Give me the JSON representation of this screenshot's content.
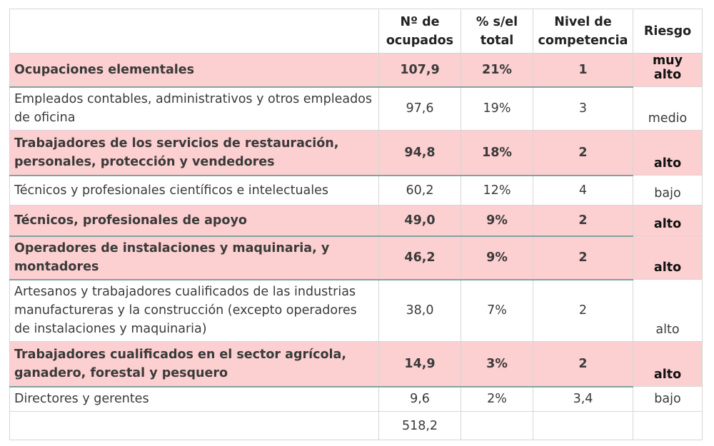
{
  "headers": {
    "occupation": "",
    "employed_l1": "Nº de",
    "employed_l2": "ocupados",
    "percent_l1": "% s/el",
    "percent_l2": "total",
    "level_l1": "Nivel de",
    "level_l2": "competencia",
    "risk": "Riesgo"
  },
  "rows": [
    {
      "name": "Ocupaciones elementales",
      "employed": "107,9",
      "percent": "21%",
      "level": "1",
      "risk": "muy alto"
    },
    {
      "name": "Empleados contables, administrativos y otros empleados de oficina",
      "employed": "97,6",
      "percent": "19%",
      "level": "3",
      "risk": "medio"
    },
    {
      "name": "Trabajadores de los servicios de restauración, personales, protección y vendedores",
      "employed": "94,8",
      "percent": "18%",
      "level": "2",
      "risk": "alto"
    },
    {
      "name": "Técnicos y profesionales científicos e intelectuales",
      "employed": "60,2",
      "percent": "12%",
      "level": "4",
      "risk": "bajo"
    },
    {
      "name": "Técnicos, profesionales de apoyo",
      "employed": "49,0",
      "percent": "9%",
      "level": "2",
      "risk": "alto"
    },
    {
      "name": "Operadores de instalaciones y maquinaria, y montadores",
      "employed": "46,2",
      "percent": "9%",
      "level": "2",
      "risk": "alto"
    },
    {
      "name": "Artesanos y trabajadores cualificados de las industrias manufactureras y la construcción (excepto operadores de instalaciones y maquinaria)",
      "employed": "38,0",
      "percent": "7%",
      "level": "2",
      "risk": "alto"
    },
    {
      "name": "Trabajadores cualificados en el sector agrícola, ganadero, forestal y pesquero",
      "employed": "14,9",
      "percent": "3%",
      "level": "2",
      "risk": "alto"
    },
    {
      "name": "Directores y gerentes",
      "employed": "9,6",
      "percent": "2%",
      "level": "3,4",
      "risk": "bajo"
    }
  ],
  "total": {
    "employed": "518,2"
  }
}
